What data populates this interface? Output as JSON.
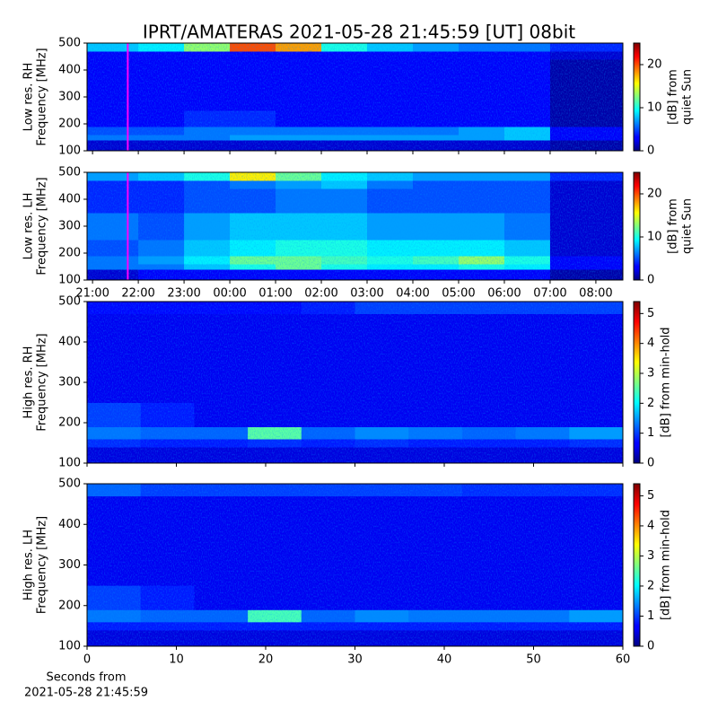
{
  "title": "IPRT/AMATERAS 2021-05-28 21:45:59 [UT]   08bit",
  "chart_data": [
    {
      "type": "heatmap",
      "ylabel": [
        "Low res. RH",
        "Frequency [MHz]"
      ],
      "xlim": [
        20.88,
        32.59
      ],
      "xticks": [
        21,
        22,
        23,
        24,
        25,
        26,
        27,
        28,
        29,
        30,
        31,
        32
      ],
      "tick_labels": false,
      "ylim": [
        100,
        500
      ],
      "yticks": [
        100,
        200,
        300,
        400,
        500
      ],
      "clim": [
        0,
        25
      ],
      "cticks": [
        0,
        10,
        20
      ],
      "clabel": [
        "[dB] from",
        "quiet Sun"
      ],
      "marker": {
        "x": 21.77,
        "color": "#ff00ff"
      },
      "xbins": [
        20.88,
        22,
        23,
        24,
        25,
        26,
        27,
        28,
        29,
        30,
        31,
        32.59
      ],
      "ybins": [
        100,
        140,
        160,
        190,
        250,
        350,
        440,
        470,
        500
      ],
      "z": [
        [
          2,
          2,
          2,
          2,
          2,
          2,
          2,
          2,
          2,
          2,
          1
        ],
        [
          6,
          6,
          6,
          7,
          7,
          7,
          7,
          7,
          7,
          8,
          3
        ],
        [
          5,
          5,
          6,
          6,
          6,
          6,
          6,
          6,
          7,
          8,
          3
        ],
        [
          3,
          3,
          4,
          4,
          3,
          3,
          3,
          3,
          3,
          3,
          1
        ],
        [
          3,
          3,
          3,
          3,
          3,
          3,
          3,
          3,
          3,
          3,
          1
        ],
        [
          3,
          3,
          3,
          3,
          3,
          3,
          3,
          3,
          3,
          3,
          1
        ],
        [
          3,
          3,
          3,
          3,
          3,
          3,
          3,
          3,
          3,
          3,
          2
        ],
        [
          8,
          9,
          13,
          20,
          18,
          10,
          8,
          7,
          6,
          6,
          4
        ]
      ]
    },
    {
      "type": "heatmap",
      "ylabel": [
        "Low res. LH",
        "Frequency [MHz]"
      ],
      "xlim": [
        20.88,
        32.59
      ],
      "xticks": [
        {
          "value": 21,
          "label": "21:00"
        },
        {
          "value": 22,
          "label": "22:00"
        },
        {
          "value": 23,
          "label": "23:00"
        },
        {
          "value": 24,
          "label": "00:00"
        },
        {
          "value": 25,
          "label": "01:00"
        },
        {
          "value": 26,
          "label": "02:00"
        },
        {
          "value": 27,
          "label": "03:00"
        },
        {
          "value": 28,
          "label": "04:00"
        },
        {
          "value": 29,
          "label": "05:00"
        },
        {
          "value": 30,
          "label": "06:00"
        },
        {
          "value": 31,
          "label": "07:00"
        },
        {
          "value": 32,
          "label": "08:00"
        }
      ],
      "tick_labels": true,
      "ylim": [
        100,
        500
      ],
      "yticks": [
        100,
        200,
        300,
        400,
        500
      ],
      "clim": [
        0,
        25
      ],
      "cticks": [
        0,
        10,
        20
      ],
      "clabel": [
        "[dB] from",
        "quiet Sun"
      ],
      "marker": {
        "x": 21.77,
        "color": "#ff00ff"
      },
      "xbins": [
        20.88,
        22,
        23,
        24,
        25,
        26,
        27,
        28,
        29,
        30,
        31,
        32.59
      ],
      "ybins": [
        100,
        140,
        160,
        190,
        250,
        350,
        440,
        470,
        500
      ],
      "z": [
        [
          2,
          3,
          3,
          3,
          3,
          3,
          3,
          3,
          3,
          3,
          1
        ],
        [
          6,
          6,
          8,
          10,
          12,
          10,
          9,
          9,
          10,
          9,
          3
        ],
        [
          6,
          7,
          9,
          12,
          12,
          11,
          10,
          11,
          13,
          10,
          3
        ],
        [
          5,
          6,
          8,
          9,
          10,
          10,
          9,
          9,
          9,
          8,
          2
        ],
        [
          6,
          5,
          7,
          8,
          8,
          8,
          7,
          7,
          7,
          6,
          2
        ],
        [
          4,
          4,
          5,
          5,
          6,
          6,
          5,
          5,
          5,
          5,
          2
        ],
        [
          4,
          4,
          5,
          6,
          7,
          8,
          6,
          5,
          5,
          5,
          2
        ],
        [
          7,
          8,
          10,
          16,
          12,
          9,
          8,
          7,
          7,
          7,
          4
        ]
      ]
    },
    {
      "type": "heatmap",
      "ylabel": [
        "High res. RH",
        "Frequency [MHz]"
      ],
      "xlim": [
        0,
        60
      ],
      "xticks": [
        0,
        10,
        20,
        30,
        40,
        50,
        60
      ],
      "tick_labels": false,
      "ylim": [
        100,
        500
      ],
      "yticks": [
        100,
        200,
        300,
        400,
        500
      ],
      "clim": [
        0,
        5.4
      ],
      "cticks": [
        0,
        1,
        2,
        3,
        4,
        5
      ],
      "clabel": [
        "[dB] from min-hold"
      ],
      "xbins": [
        0,
        6,
        12,
        18,
        24,
        30,
        36,
        42,
        48,
        54,
        60
      ],
      "ybins": [
        100,
        140,
        160,
        190,
        250,
        350,
        440,
        470,
        500
      ],
      "z": [
        [
          0.5,
          0.5,
          0.5,
          0.5,
          0.5,
          0.5,
          0.5,
          0.5,
          0.5,
          0.5
        ],
        [
          0.9,
          0.8,
          0.8,
          0.9,
          0.8,
          0.9,
          0.8,
          0.8,
          0.8,
          0.9
        ],
        [
          1.3,
          1.2,
          1.2,
          2.5,
          1.2,
          1.4,
          1.3,
          1.2,
          1.3,
          1.5
        ],
        [
          1.0,
          0.8,
          0.6,
          0.6,
          0.6,
          0.6,
          0.6,
          0.6,
          0.6,
          0.6
        ],
        [
          0.6,
          0.6,
          0.6,
          0.6,
          0.6,
          0.6,
          0.6,
          0.6,
          0.6,
          0.6
        ],
        [
          0.6,
          0.6,
          0.6,
          0.6,
          0.6,
          0.6,
          0.6,
          0.6,
          0.6,
          0.6
        ],
        [
          0.6,
          0.6,
          0.6,
          0.6,
          0.6,
          0.6,
          0.6,
          0.6,
          0.6,
          0.6
        ],
        [
          0.7,
          0.7,
          0.7,
          0.7,
          0.8,
          1.0,
          1.0,
          1.0,
          1.0,
          1.0
        ]
      ]
    },
    {
      "type": "heatmap",
      "ylabel": [
        "High res. LH",
        "Frequency [MHz]"
      ],
      "xlim": [
        0,
        60
      ],
      "xticks": [
        0,
        10,
        20,
        30,
        40,
        50,
        60
      ],
      "tick_labels": true,
      "xlabel": [
        "Seconds from",
        "2021-05-28 21:45:59"
      ],
      "ylim": [
        100,
        500
      ],
      "yticks": [
        100,
        200,
        300,
        400,
        500
      ],
      "clim": [
        0,
        5.4
      ],
      "cticks": [
        0,
        1,
        2,
        3,
        4,
        5
      ],
      "clabel": [
        "[dB] from min-hold"
      ],
      "xbins": [
        0,
        6,
        12,
        18,
        24,
        30,
        36,
        42,
        48,
        54,
        60
      ],
      "ybins": [
        100,
        140,
        160,
        190,
        250,
        350,
        440,
        470,
        500
      ],
      "z": [
        [
          0.5,
          0.5,
          0.5,
          0.5,
          0.5,
          0.5,
          0.5,
          0.5,
          0.5,
          0.5
        ],
        [
          0.8,
          0.8,
          0.8,
          0.8,
          0.8,
          0.8,
          0.8,
          0.8,
          0.8,
          0.8
        ],
        [
          1.3,
          1.2,
          1.2,
          2.4,
          1.2,
          1.4,
          1.3,
          1.3,
          1.3,
          1.5
        ],
        [
          1.0,
          0.8,
          0.6,
          0.6,
          0.6,
          0.6,
          0.6,
          0.6,
          0.6,
          0.6
        ],
        [
          0.6,
          0.6,
          0.6,
          0.6,
          0.6,
          0.6,
          0.6,
          0.6,
          0.6,
          0.6
        ],
        [
          0.6,
          0.6,
          0.6,
          0.6,
          0.6,
          0.6,
          0.6,
          0.6,
          0.6,
          0.6
        ],
        [
          0.6,
          0.6,
          0.6,
          0.6,
          0.6,
          0.6,
          0.6,
          0.6,
          0.6,
          0.6
        ],
        [
          1.2,
          1.0,
          1.0,
          1.0,
          1.0,
          1.0,
          1.0,
          0.9,
          0.9,
          0.9
        ]
      ]
    }
  ]
}
